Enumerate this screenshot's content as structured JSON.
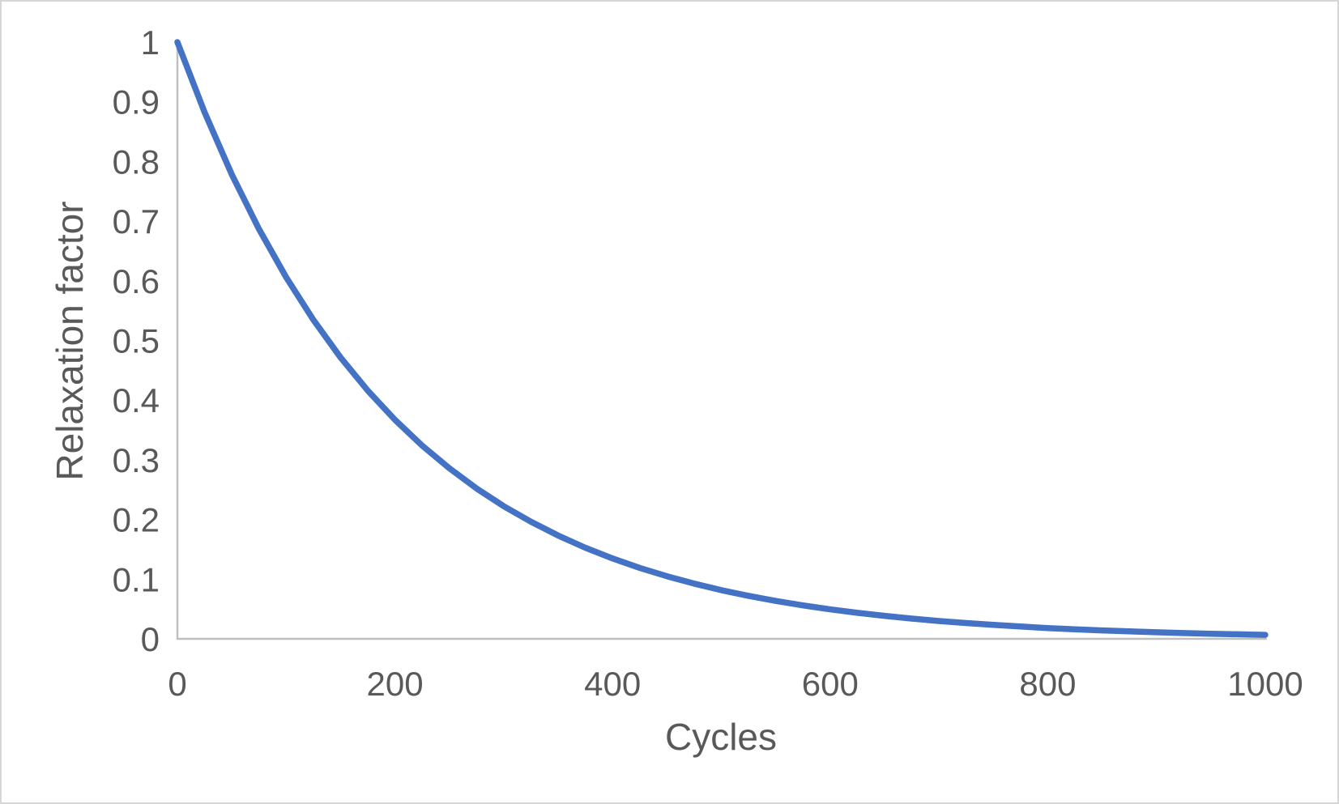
{
  "chart_data": {
    "type": "line",
    "title": "",
    "xlabel": "Cycles",
    "ylabel": "Relaxation factor",
    "xlim": [
      0,
      1000
    ],
    "ylim": [
      0,
      1
    ],
    "xticks": [
      "0",
      "200",
      "400",
      "600",
      "800",
      "1000"
    ],
    "yticks": [
      "0",
      "0.1",
      "0.2",
      "0.3",
      "0.4",
      "0.5",
      "0.6",
      "0.7",
      "0.8",
      "0.9",
      "1"
    ],
    "grid": false,
    "legend_position": "none",
    "series": [
      {
        "name": "Relaxation factor",
        "color": "#4472C4",
        "x": [
          0,
          25,
          50,
          75,
          100,
          125,
          150,
          175,
          200,
          225,
          250,
          275,
          300,
          325,
          350,
          375,
          400,
          425,
          450,
          475,
          500,
          525,
          550,
          575,
          600,
          625,
          650,
          675,
          700,
          725,
          750,
          775,
          800,
          825,
          850,
          875,
          900,
          925,
          950,
          975,
          1000
        ],
        "y": [
          1.0,
          0.8822,
          0.7783,
          0.6867,
          0.6058,
          0.5345,
          0.4715,
          0.416,
          0.367,
          0.3238,
          0.2857,
          0.252,
          0.2223,
          0.1962,
          0.1731,
          0.1527,
          0.1347,
          0.1188,
          0.1049,
          0.0925,
          0.0816,
          0.072,
          0.0635,
          0.056,
          0.0494,
          0.0436,
          0.0385,
          0.0339,
          0.0299,
          0.0264,
          0.0233,
          0.0206,
          0.0181,
          0.016,
          0.0141,
          0.0125,
          0.011,
          0.0097,
          0.0086,
          0.0076,
          0.0067
        ]
      }
    ]
  },
  "colors": {
    "line": "#4472C4",
    "axis_line": "#BFBFBF",
    "text": "#595959",
    "background": "#FFFFFF",
    "frame_border": "#D6D6D6"
  }
}
